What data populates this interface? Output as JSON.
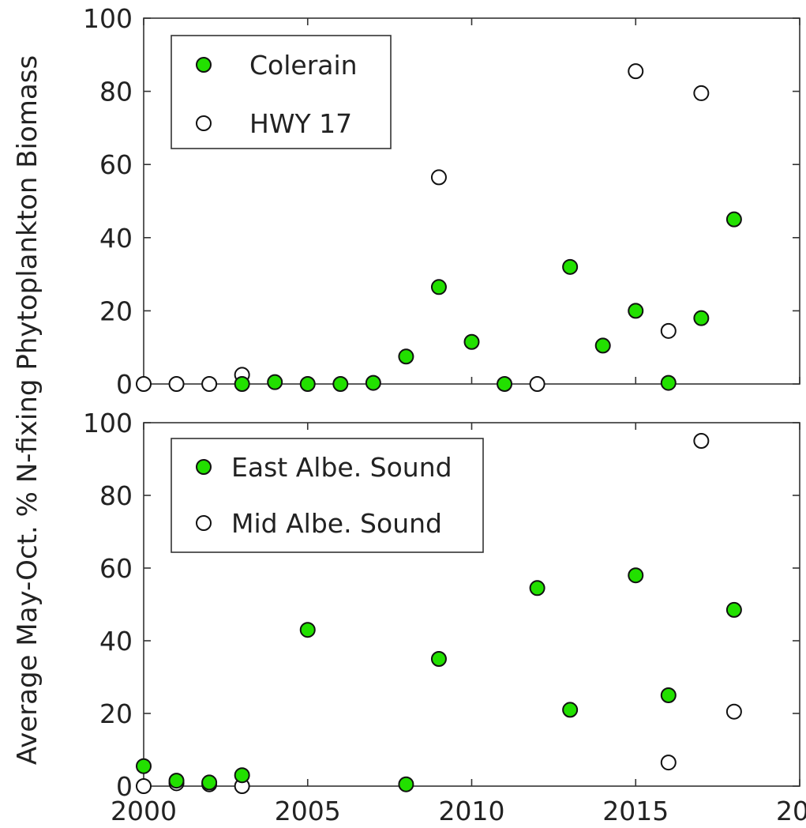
{
  "chart_data": [
    {
      "type": "scatter",
      "panel": "top",
      "xlim": [
        2000,
        2020
      ],
      "ylim": [
        0,
        100
      ],
      "xticks": [
        "2000",
        "2005",
        "2010",
        "2015",
        "20"
      ],
      "yticks": [
        "0",
        "20",
        "40",
        "60",
        "80",
        "100"
      ],
      "show_xtick_labels": false,
      "legend_position": "top-left",
      "series": [
        {
          "name": "Colerain",
          "color": "#22e000",
          "filled": true,
          "points": [
            {
              "x": 2003,
              "y": 0
            },
            {
              "x": 2004,
              "y": 0.5
            },
            {
              "x": 2005,
              "y": 0
            },
            {
              "x": 2006,
              "y": 0
            },
            {
              "x": 2007,
              "y": 0.3
            },
            {
              "x": 2008,
              "y": 7.5
            },
            {
              "x": 2009,
              "y": 26.5
            },
            {
              "x": 2010,
              "y": 11.5
            },
            {
              "x": 2011,
              "y": 0
            },
            {
              "x": 2013,
              "y": 32
            },
            {
              "x": 2014,
              "y": 10.5
            },
            {
              "x": 2015,
              "y": 20
            },
            {
              "x": 2016,
              "y": 0.3
            },
            {
              "x": 2017,
              "y": 18
            },
            {
              "x": 2018,
              "y": 45
            }
          ]
        },
        {
          "name": "HWY 17",
          "color": "#ffffff",
          "filled": false,
          "points": [
            {
              "x": 2000,
              "y": 0
            },
            {
              "x": 2001,
              "y": 0
            },
            {
              "x": 2002,
              "y": 0
            },
            {
              "x": 2003,
              "y": 2.5
            },
            {
              "x": 2009,
              "y": 56.5
            },
            {
              "x": 2012,
              "y": 0
            },
            {
              "x": 2015,
              "y": 85.5
            },
            {
              "x": 2016,
              "y": 14.5
            },
            {
              "x": 2017,
              "y": 79.5
            }
          ]
        }
      ]
    },
    {
      "type": "scatter",
      "panel": "bottom",
      "xlim": [
        2000,
        2020
      ],
      "ylim": [
        0,
        100
      ],
      "xticks": [
        "2000",
        "2005",
        "2010",
        "2015",
        "20"
      ],
      "yticks": [
        "0",
        "20",
        "40",
        "60",
        "80",
        "100"
      ],
      "show_xtick_labels": true,
      "legend_position": "top-left",
      "series": [
        {
          "name": "East Albe. Sound",
          "color": "#22e000",
          "filled": true,
          "points": [
            {
              "x": 2000,
              "y": 5.5
            },
            {
              "x": 2001,
              "y": 1.5
            },
            {
              "x": 2002,
              "y": 1
            },
            {
              "x": 2003,
              "y": 3
            },
            {
              "x": 2005,
              "y": 43
            },
            {
              "x": 2008,
              "y": 0.5
            },
            {
              "x": 2009,
              "y": 35
            },
            {
              "x": 2012,
              "y": 54.5
            },
            {
              "x": 2013,
              "y": 21
            },
            {
              "x": 2015,
              "y": 58
            },
            {
              "x": 2016,
              "y": 25
            },
            {
              "x": 2018,
              "y": 48.5
            }
          ]
        },
        {
          "name": "Mid Albe. Sound",
          "color": "#ffffff",
          "filled": false,
          "points": [
            {
              "x": 2000,
              "y": 0
            },
            {
              "x": 2001,
              "y": 0.8
            },
            {
              "x": 2002,
              "y": 0.5
            },
            {
              "x": 2003,
              "y": 0
            },
            {
              "x": 2016,
              "y": 6.5
            },
            {
              "x": 2017,
              "y": 95
            },
            {
              "x": 2018,
              "y": 20.5
            }
          ]
        }
      ]
    }
  ],
  "ylabel": "Average May-Oct. % N-fixing Phytoplankton Biomass"
}
